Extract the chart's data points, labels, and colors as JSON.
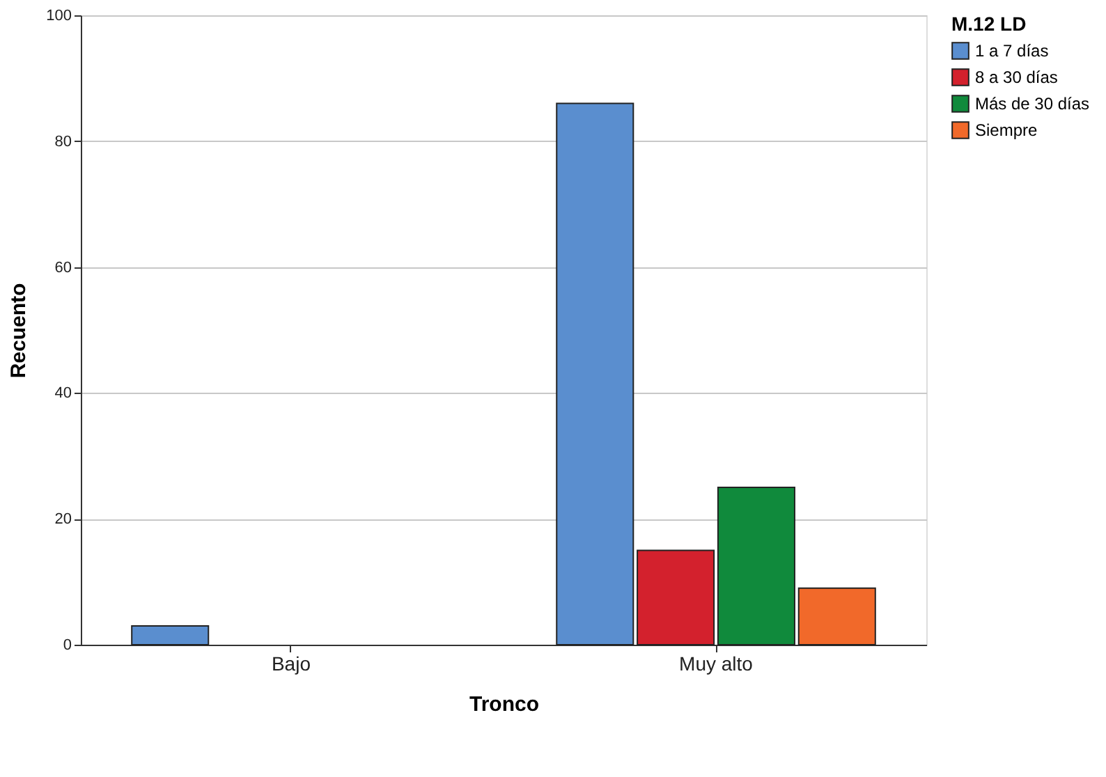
{
  "chart_data": {
    "type": "bar",
    "xlabel": "Tronco",
    "ylabel": "Recuento",
    "legend_title": "M.12 LD",
    "categories": [
      "Bajo",
      "Muy alto"
    ],
    "series": [
      {
        "name": "1 a 7 días",
        "color": "#5a8ecf",
        "values": [
          3,
          86
        ]
      },
      {
        "name": "8 a 30 días",
        "color": "#d3212d",
        "values": [
          null,
          15
        ]
      },
      {
        "name": "Más de 30 días",
        "color": "#108a3c",
        "values": [
          null,
          25
        ]
      },
      {
        "name": "Siempre",
        "color": "#f1692a",
        "values": [
          null,
          9
        ]
      }
    ],
    "ylim": [
      0,
      100
    ],
    "yticks": [
      0,
      20,
      40,
      60,
      80,
      100
    ],
    "grid": "y",
    "legend": "top right"
  }
}
